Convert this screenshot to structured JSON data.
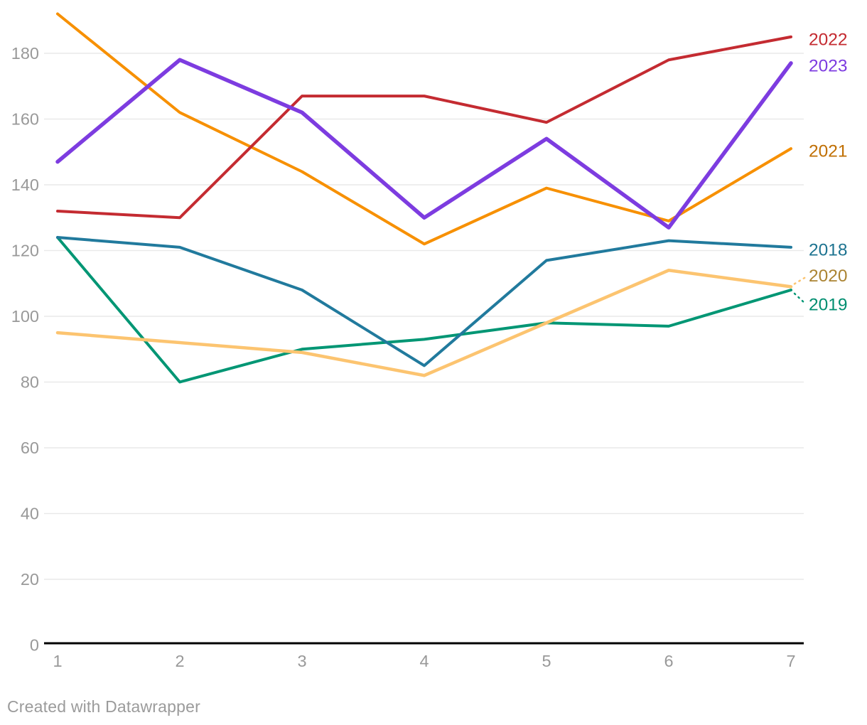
{
  "chart_data": {
    "type": "line",
    "x": [
      1,
      2,
      3,
      4,
      5,
      6,
      7
    ],
    "x_tick_labels": [
      "1",
      "2",
      "3",
      "4",
      "5",
      "6",
      "7"
    ],
    "yticks": [
      0,
      20,
      40,
      60,
      80,
      100,
      120,
      140,
      160,
      180
    ],
    "ylim": [
      0,
      195
    ],
    "xlabel": "",
    "ylabel": "",
    "title": "",
    "grid": "horizontal",
    "legend_position": "right-edge-line-labels",
    "series": [
      {
        "name": "2019",
        "values": [
          124,
          80,
          90,
          93,
          98,
          97,
          108
        ],
        "color": "#009674",
        "label_color": "#008e70",
        "width": 4,
        "label_dy": 21,
        "leader": true
      },
      {
        "name": "2020",
        "values": [
          95,
          92,
          89,
          82,
          98,
          114,
          109
        ],
        "color": "#fcc470",
        "label_color": "#ab8433",
        "width": 4.5,
        "label_dy": -15,
        "leader": true
      },
      {
        "name": "2018",
        "values": [
          124,
          121,
          108,
          85,
          117,
          123,
          121
        ],
        "color": "#217a9d",
        "label_color": "#1d7390",
        "width": 4,
        "label_dy": 4,
        "leader": false
      },
      {
        "name": "2021",
        "values": [
          192,
          162,
          144,
          122,
          139,
          129,
          151
        ],
        "color": "#f79000",
        "label_color": "#c06f03",
        "width": 4,
        "label_dy": 4,
        "leader": false
      },
      {
        "name": "2022",
        "values": [
          132,
          130,
          167,
          167,
          159,
          178,
          185
        ],
        "color": "#c42b31",
        "label_color": "#c42b31",
        "width": 4,
        "label_dy": 4,
        "leader": false
      },
      {
        "name": "2023",
        "values": [
          147,
          178,
          162,
          130,
          154,
          127,
          177
        ],
        "color": "#7d3ce0",
        "label_color": "#7d3ce0",
        "width": 5.5,
        "label_dy": 4,
        "leader": false
      }
    ]
  },
  "footer": {
    "credit": "Created with Datawrapper"
  },
  "colors": {
    "background": "#ffffff",
    "gridline": "#e9e9e9",
    "axis_line": "#000000",
    "tick_label": "#999999",
    "footer_text": "#9b9b9b"
  }
}
